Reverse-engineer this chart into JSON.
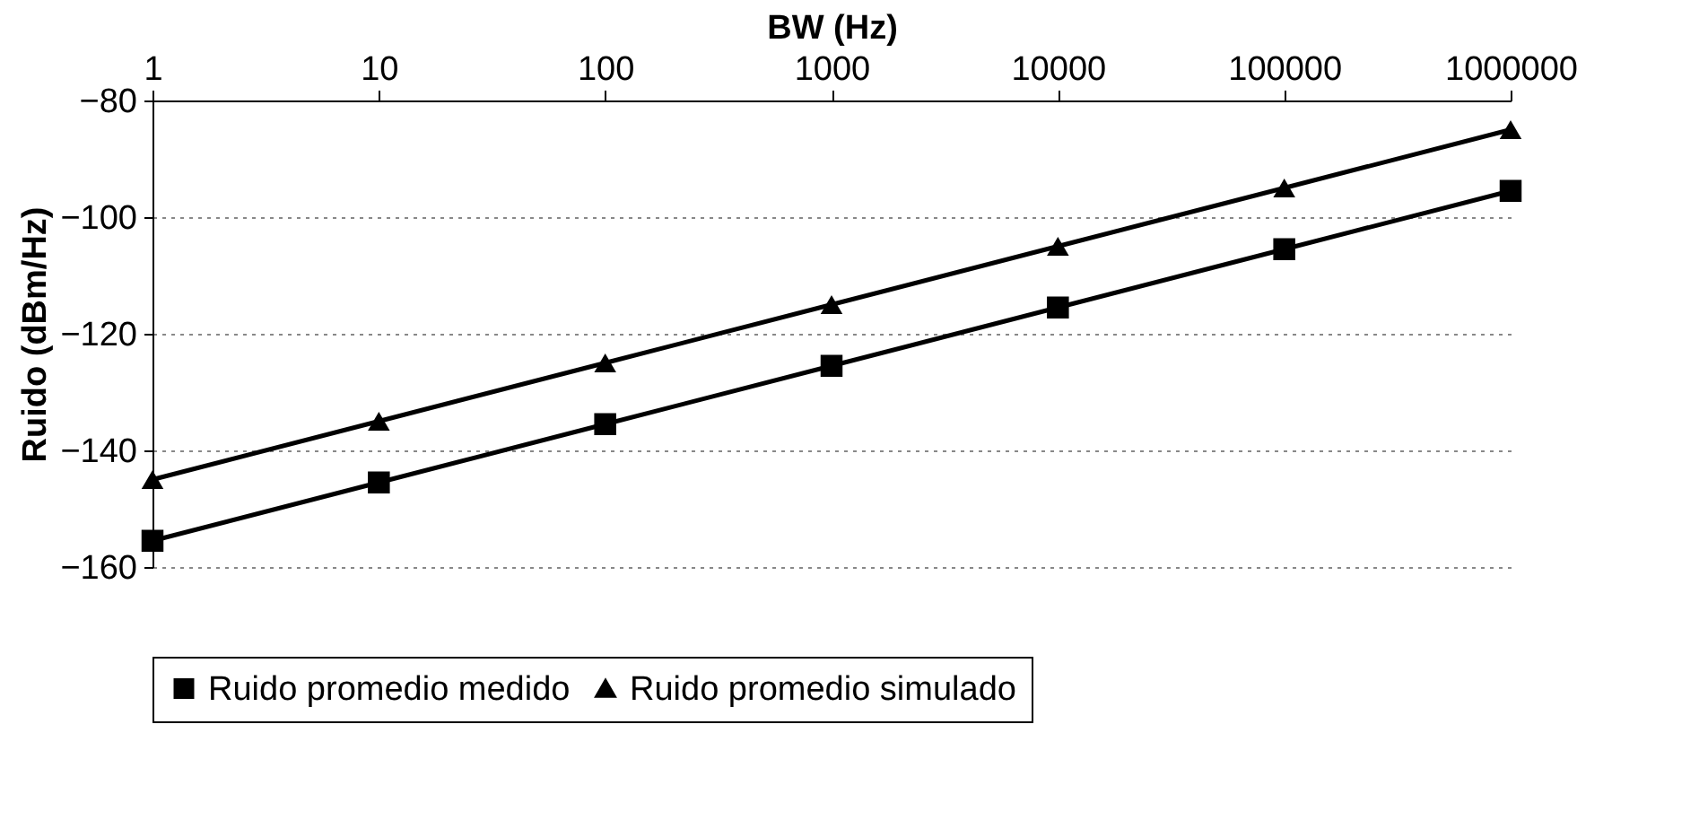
{
  "chart_data": {
    "type": "line",
    "xlabel": "BW (Hz)",
    "ylabel": "Ruido (dBm/Hz)",
    "categories": [
      "1",
      "10",
      "100",
      "1000",
      "10000",
      "100000",
      "1000000"
    ],
    "series": [
      {
        "name": "Ruido promedio medido",
        "color": "#000000",
        "marker": "square",
        "values": [
          -155.5,
          -145.5,
          -135.5,
          -125.5,
          -115.5,
          -105.5,
          -95.5
        ]
      },
      {
        "name": "Ruido promedio simulado",
        "color": "#000000",
        "marker": "triangle",
        "values": [
          -145,
          -135,
          -125,
          -115,
          -105,
          -95,
          -85
        ]
      }
    ],
    "ylim": [
      -160,
      -80
    ],
    "yticks": [
      -160,
      -140,
      -120,
      -100,
      -80
    ],
    "grid": "y",
    "legend": "bottom",
    "line_style": "solid"
  }
}
